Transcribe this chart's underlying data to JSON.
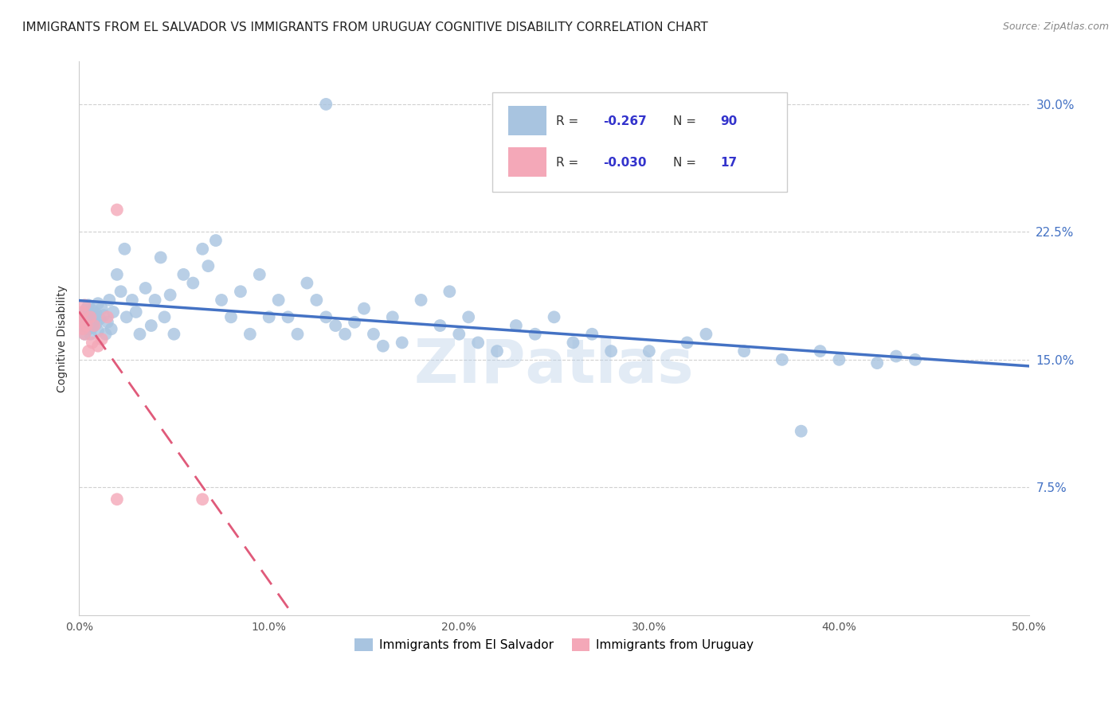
{
  "title": "IMMIGRANTS FROM EL SALVADOR VS IMMIGRANTS FROM URUGUAY COGNITIVE DISABILITY CORRELATION CHART",
  "source": "Source: ZipAtlas.com",
  "ylabel": "Cognitive Disability",
  "legend_labels": [
    "Immigrants from El Salvador",
    "Immigrants from Uruguay"
  ],
  "r_el_salvador": -0.267,
  "n_el_salvador": 90,
  "r_uruguay": -0.03,
  "n_uruguay": 17,
  "xlim": [
    0.0,
    0.5
  ],
  "ylim": [
    0.0,
    0.325
  ],
  "yticks": [
    0.075,
    0.15,
    0.225,
    0.3
  ],
  "ytick_labels": [
    "7.5%",
    "15.0%",
    "22.5%",
    "30.0%"
  ],
  "xticks": [
    0.0,
    0.1,
    0.2,
    0.3,
    0.4,
    0.5
  ],
  "xtick_labels": [
    "0.0%",
    "10.0%",
    "20.0%",
    "30.0%",
    "40.0%",
    "50.0%"
  ],
  "color_el_salvador": "#a8c4e0",
  "color_uruguay": "#f4a8b8",
  "line_color_el_salvador": "#4472c4",
  "line_color_uruguay": "#e05a7a",
  "background_color": "#ffffff",
  "grid_color": "#d0d0d0",
  "tick_color": "#4472c4",
  "title_fontsize": 11,
  "axis_label_fontsize": 10,
  "tick_fontsize": 10,
  "legend_r_color": "#3333cc",
  "es_x": [
    0.001,
    0.002,
    0.003,
    0.003,
    0.004,
    0.004,
    0.005,
    0.005,
    0.006,
    0.006,
    0.007,
    0.007,
    0.008,
    0.008,
    0.009,
    0.009,
    0.01,
    0.01,
    0.011,
    0.012,
    0.013,
    0.014,
    0.015,
    0.016,
    0.017,
    0.018,
    0.02,
    0.022,
    0.024,
    0.025,
    0.028,
    0.03,
    0.032,
    0.035,
    0.038,
    0.04,
    0.043,
    0.045,
    0.048,
    0.05,
    0.055,
    0.06,
    0.065,
    0.068,
    0.072,
    0.075,
    0.08,
    0.085,
    0.09,
    0.095,
    0.1,
    0.105,
    0.11,
    0.115,
    0.12,
    0.125,
    0.13,
    0.135,
    0.14,
    0.145,
    0.15,
    0.155,
    0.16,
    0.165,
    0.17,
    0.18,
    0.19,
    0.195,
    0.2,
    0.205,
    0.21,
    0.22,
    0.23,
    0.24,
    0.25,
    0.26,
    0.27,
    0.28,
    0.3,
    0.32,
    0.33,
    0.35,
    0.37,
    0.38,
    0.39,
    0.4,
    0.42,
    0.43,
    0.44,
    0.13
  ],
  "es_y": [
    0.175,
    0.17,
    0.178,
    0.165,
    0.18,
    0.172,
    0.168,
    0.182,
    0.175,
    0.165,
    0.179,
    0.169,
    0.176,
    0.173,
    0.171,
    0.177,
    0.183,
    0.167,
    0.174,
    0.18,
    0.176,
    0.165,
    0.172,
    0.185,
    0.168,
    0.178,
    0.2,
    0.19,
    0.215,
    0.175,
    0.185,
    0.178,
    0.165,
    0.192,
    0.17,
    0.185,
    0.21,
    0.175,
    0.188,
    0.165,
    0.2,
    0.195,
    0.215,
    0.205,
    0.22,
    0.185,
    0.175,
    0.19,
    0.165,
    0.2,
    0.175,
    0.185,
    0.175,
    0.165,
    0.195,
    0.185,
    0.175,
    0.17,
    0.165,
    0.172,
    0.18,
    0.165,
    0.158,
    0.175,
    0.16,
    0.185,
    0.17,
    0.19,
    0.165,
    0.175,
    0.16,
    0.155,
    0.17,
    0.165,
    0.175,
    0.16,
    0.165,
    0.155,
    0.155,
    0.16,
    0.165,
    0.155,
    0.15,
    0.108,
    0.155,
    0.15,
    0.148,
    0.152,
    0.15,
    0.3
  ],
  "uy_x": [
    0.0005,
    0.001,
    0.002,
    0.002,
    0.003,
    0.003,
    0.004,
    0.005,
    0.006,
    0.007,
    0.008,
    0.01,
    0.012,
    0.015,
    0.02,
    0.065,
    0.02
  ],
  "uy_y": [
    0.175,
    0.172,
    0.168,
    0.178,
    0.165,
    0.182,
    0.17,
    0.155,
    0.175,
    0.16,
    0.17,
    0.158,
    0.162,
    0.175,
    0.238,
    0.068,
    0.068
  ]
}
